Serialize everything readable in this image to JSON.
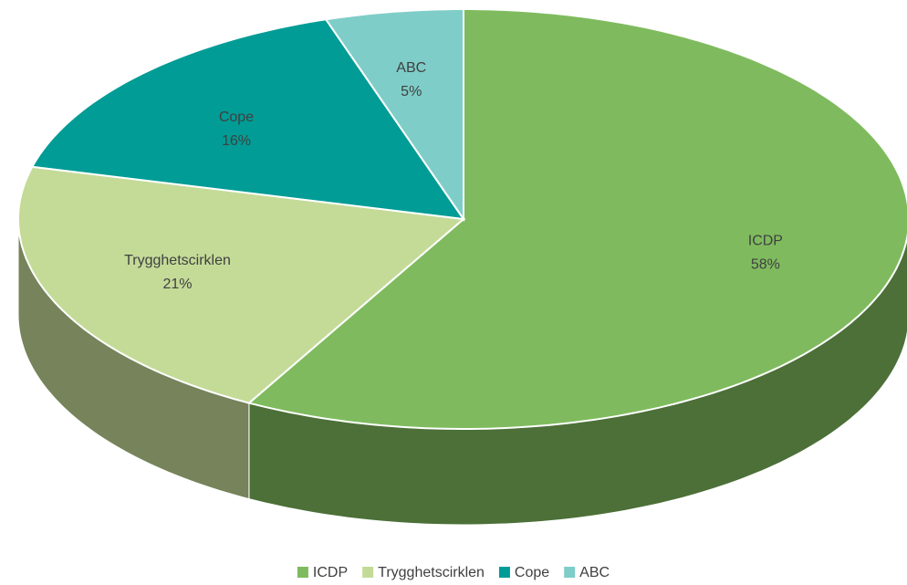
{
  "chart_data": {
    "type": "pie",
    "categories": [
      "ICDP",
      "Trygghetscirklen",
      "Cope",
      "ABC"
    ],
    "values": [
      58,
      21,
      16,
      5
    ],
    "value_labels": [
      "58%",
      "21%",
      "16%",
      "5%"
    ],
    "colors": [
      "#7fbb5e",
      "#c4db98",
      "#009c95",
      "#7fcdc8"
    ],
    "legend": "bottom"
  }
}
